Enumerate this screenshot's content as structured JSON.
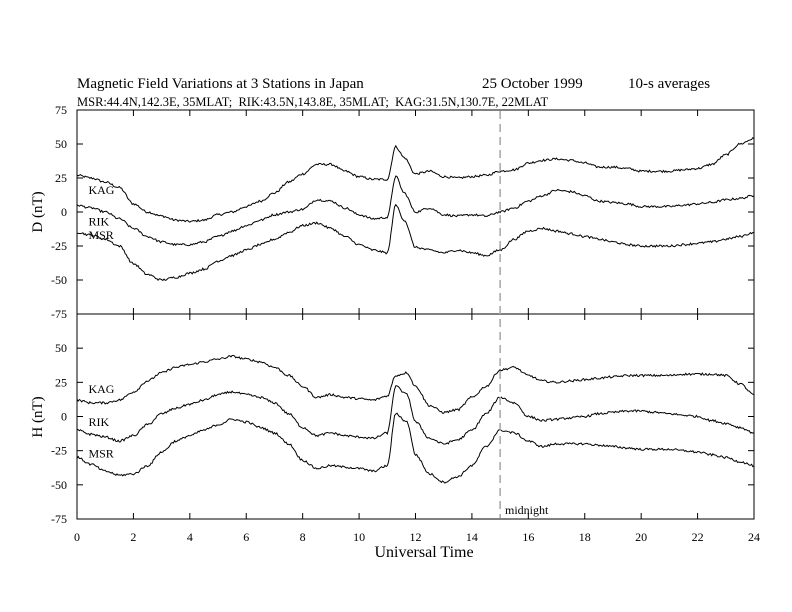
{
  "header": {
    "title": "Magnetic Field Variations at 3 Stations in Japan",
    "date": "25 October 1999",
    "averaging": "10-s averages",
    "stations": "MSR:44.4N,142.3E, 35MLAT;  RIK:43.5N,143.8E, 35MLAT;  KAG:31.5N,130.7E, 22MLAT"
  },
  "chart_data": {
    "type": "line",
    "xlabel": "Universal Time",
    "xlim": [
      0,
      24
    ],
    "xticks": [
      0,
      2,
      4,
      6,
      8,
      10,
      12,
      14,
      16,
      18,
      20,
      22,
      24
    ],
    "annotation": {
      "x": 15,
      "label": "midnight",
      "style": "dashed",
      "color": "#aaaaaa"
    },
    "panels": [
      {
        "id": "D",
        "ylabel": "D (nT)",
        "ylim": [
          -75,
          75
        ],
        "yticks": [
          -75,
          -50,
          -25,
          0,
          25,
          50,
          75
        ],
        "series": [
          {
            "name": "KAG",
            "label_pos": [
              0.3,
              16
            ],
            "x": [
              0,
              0.5,
              1,
              1.5,
              2,
              2.5,
              3,
              3.5,
              4,
              4.5,
              5,
              5.5,
              6,
              6.5,
              7,
              7.5,
              8,
              8.5,
              9,
              9.5,
              10,
              10.5,
              11,
              11.3,
              11.6,
              12,
              12.5,
              13,
              13.5,
              14,
              14.5,
              15,
              15.5,
              16,
              16.5,
              17,
              17.5,
              18,
              18.5,
              19,
              19.5,
              20,
              20.5,
              21,
              21.5,
              22,
              22.5,
              23,
              23.5,
              24
            ],
            "y": [
              27,
              25,
              22,
              18,
              6,
              0,
              -3,
              -6,
              -7,
              -6,
              -2,
              0,
              4,
              8,
              14,
              22,
              28,
              35,
              35,
              30,
              26,
              24,
              24,
              48,
              40,
              28,
              30,
              26,
              25,
              26,
              27,
              30,
              31,
              36,
              38,
              39,
              38,
              36,
              33,
              33,
              32,
              30,
              30,
              30,
              31,
              32,
              35,
              42,
              50,
              54
            ]
          },
          {
            "name": "RIK",
            "label_pos": [
              0.3,
              -7
            ],
            "x": [
              0,
              0.5,
              1,
              1.5,
              2,
              2.5,
              3,
              3.5,
              4,
              4.5,
              5,
              5.5,
              6,
              6.5,
              7,
              7.5,
              8,
              8.5,
              9,
              9.5,
              10,
              10.5,
              11,
              11.3,
              11.6,
              12,
              12.5,
              13,
              13.5,
              14,
              14.5,
              15,
              15.5,
              16,
              16.5,
              17,
              17.5,
              18,
              18.5,
              19,
              19.5,
              20,
              20.5,
              21,
              21.5,
              22,
              22.5,
              23,
              23.5,
              24
            ],
            "y": [
              5,
              3,
              0,
              -5,
              -12,
              -18,
              -22,
              -24,
              -24,
              -22,
              -18,
              -14,
              -10,
              -6,
              -2,
              0,
              2,
              9,
              8,
              3,
              -2,
              -5,
              -4,
              26,
              14,
              0,
              3,
              -2,
              -3,
              -2,
              -3,
              0,
              3,
              8,
              12,
              16,
              15,
              12,
              8,
              7,
              6,
              4,
              4,
              4,
              5,
              6,
              7,
              9,
              10,
              12
            ]
          },
          {
            "name": "MSR",
            "label_pos": [
              0.3,
              -17
            ],
            "x": [
              0,
              0.5,
              1,
              1.5,
              2,
              2.5,
              3,
              3.5,
              4,
              4.5,
              5,
              5.5,
              6,
              6.5,
              7,
              7.5,
              8,
              8.5,
              9,
              9.5,
              10,
              10.5,
              11,
              11.3,
              11.6,
              12,
              12.5,
              13,
              13.5,
              14,
              14.5,
              15,
              15.5,
              16,
              16.5,
              17,
              17.5,
              18,
              18.5,
              19,
              19.5,
              20,
              20.5,
              21,
              21.5,
              22,
              22.5,
              23,
              23.5,
              24
            ],
            "y": [
              -15,
              -17,
              -20,
              -25,
              -38,
              -46,
              -50,
              -48,
              -45,
              -42,
              -36,
              -32,
              -28,
              -24,
              -20,
              -15,
              -10,
              -8,
              -12,
              -18,
              -24,
              -28,
              -30,
              5,
              -6,
              -26,
              -28,
              -30,
              -28,
              -30,
              -32,
              -28,
              -20,
              -14,
              -12,
              -14,
              -16,
              -18,
              -20,
              -22,
              -24,
              -25,
              -25,
              -25,
              -24,
              -23,
              -22,
              -20,
              -18,
              -15
            ]
          }
        ]
      },
      {
        "id": "H",
        "ylabel": "H (nT)",
        "ylim": [
          -75,
          75
        ],
        "yticks": [
          -75,
          -50,
          -25,
          0,
          25,
          50,
          75
        ],
        "series": [
          {
            "name": "KAG",
            "label_pos": [
              0.3,
              20
            ],
            "x": [
              0,
              0.5,
              1,
              1.5,
              2,
              2.5,
              3,
              3.5,
              4,
              4.5,
              5,
              5.5,
              6,
              6.5,
              7,
              7.5,
              8,
              8.5,
              9,
              9.5,
              10,
              10.5,
              11,
              11.3,
              11.7,
              12,
              12.5,
              13,
              13.5,
              14,
              14.5,
              15,
              15.5,
              16,
              16.5,
              17,
              17.5,
              18,
              18.5,
              19,
              19.5,
              20,
              20.5,
              21,
              21.5,
              22,
              22.5,
              23,
              23.5,
              24
            ],
            "y": [
              12,
              10,
              10,
              12,
              18,
              26,
              32,
              36,
              38,
              40,
              42,
              44,
              42,
              40,
              36,
              30,
              22,
              14,
              16,
              14,
              13,
              12,
              15,
              30,
              32,
              22,
              8,
              3,
              5,
              14,
              22,
              34,
              36,
              30,
              26,
              25,
              26,
              27,
              28,
              29,
              30,
              30,
              30,
              30,
              31,
              31,
              31,
              30,
              24,
              16
            ]
          },
          {
            "name": "RIK",
            "label_pos": [
              0.3,
              -4
            ],
            "x": [
              0,
              0.5,
              1,
              1.5,
              2,
              2.5,
              3,
              3.5,
              4,
              4.5,
              5,
              5.5,
              6,
              6.5,
              7,
              7.5,
              8,
              8.5,
              9,
              9.5,
              10,
              10.5,
              11,
              11.3,
              11.7,
              12,
              12.5,
              13,
              13.5,
              14,
              14.5,
              15,
              15.5,
              16,
              16.5,
              17,
              17.5,
              18,
              18.5,
              19,
              19.5,
              20,
              20.5,
              21,
              21.5,
              22,
              22.5,
              23,
              23.5,
              24
            ],
            "y": [
              -10,
              -13,
              -15,
              -18,
              -14,
              -6,
              2,
              6,
              9,
              12,
              16,
              18,
              16,
              14,
              10,
              2,
              -8,
              -14,
              -12,
              -14,
              -15,
              -16,
              -12,
              22,
              16,
              -4,
              -16,
              -20,
              -17,
              -10,
              2,
              14,
              10,
              0,
              -3,
              -2,
              -1,
              0,
              2,
              3,
              4,
              4,
              3,
              2,
              1,
              0,
              -3,
              -5,
              -8,
              -12
            ]
          },
          {
            "name": "MSR",
            "label_pos": [
              0.3,
              -27
            ],
            "x": [
              0,
              0.5,
              1,
              1.5,
              2,
              2.5,
              3,
              3.5,
              4,
              4.5,
              5,
              5.5,
              6,
              6.5,
              7,
              7.5,
              8,
              8.5,
              9,
              9.5,
              10,
              10.5,
              11,
              11.3,
              11.7,
              12,
              12.5,
              13,
              13.5,
              14,
              14.5,
              15,
              15.5,
              16,
              16.5,
              17,
              17.5,
              18,
              18.5,
              19,
              19.5,
              20,
              20.5,
              21,
              21.5,
              22,
              22.5,
              23,
              23.5,
              24
            ],
            "y": [
              -30,
              -35,
              -40,
              -43,
              -42,
              -36,
              -26,
              -18,
              -14,
              -10,
              -6,
              -2,
              -4,
              -8,
              -12,
              -20,
              -32,
              -38,
              -36,
              -37,
              -38,
              -40,
              -36,
              2,
              -4,
              -28,
              -42,
              -48,
              -44,
              -36,
              -22,
              -10,
              -12,
              -18,
              -22,
              -20,
              -20,
              -20,
              -21,
              -22,
              -23,
              -24,
              -24,
              -24,
              -25,
              -26,
              -28,
              -30,
              -33,
              -36
            ]
          }
        ]
      }
    ]
  }
}
